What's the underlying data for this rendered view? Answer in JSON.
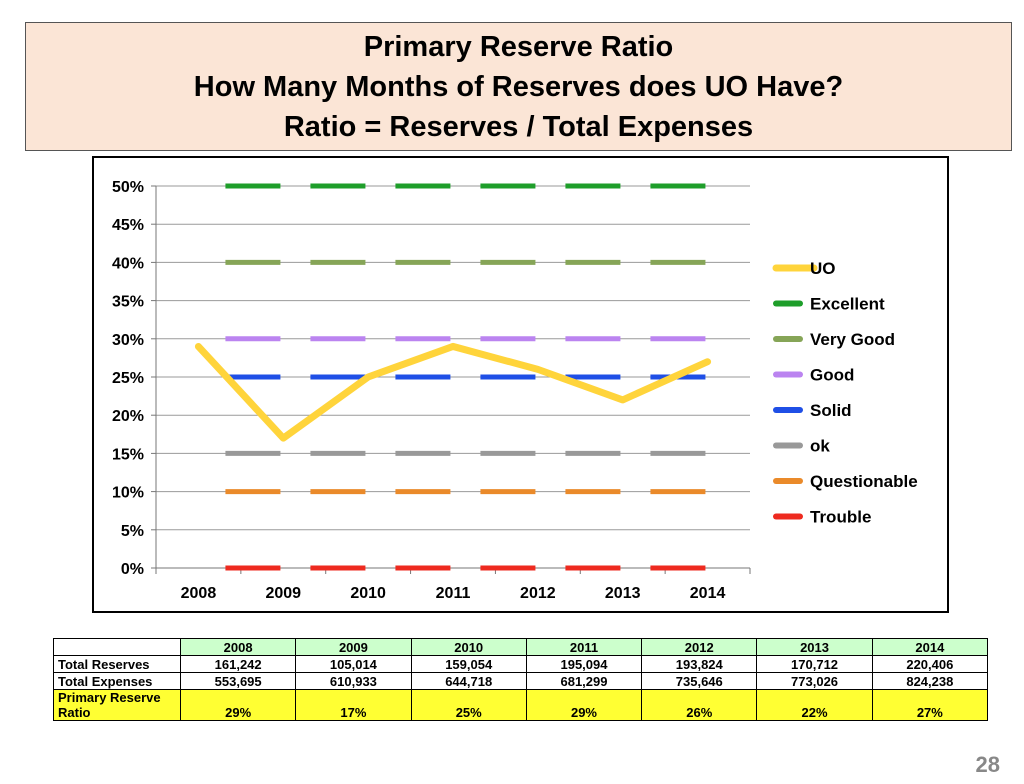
{
  "title": {
    "line1": "Primary Reserve Ratio",
    "line2": "How Many Months of Reserves does UO Have?",
    "line3": "Ratio = Reserves / Total Expenses"
  },
  "chart_data": {
    "type": "line",
    "categories": [
      "2008",
      "2009",
      "2010",
      "2011",
      "2012",
      "2013",
      "2014"
    ],
    "ylim": [
      0,
      50
    ],
    "yticks": [
      "0%",
      "5%",
      "10%",
      "15%",
      "20%",
      "25%",
      "30%",
      "35%",
      "40%",
      "45%",
      "50%"
    ],
    "grid": true,
    "legend_position": "right",
    "series": [
      {
        "name": "UO",
        "color": "#ffd43b",
        "style": "solid",
        "values": [
          29,
          17,
          25,
          29,
          26,
          22,
          27
        ]
      },
      {
        "name": "Excellent",
        "color": "#1e9e2a",
        "style": "dashed",
        "values": [
          50,
          50,
          50,
          50,
          50,
          50,
          50
        ]
      },
      {
        "name": "Very Good",
        "color": "#86a557",
        "style": "dashed",
        "values": [
          40,
          40,
          40,
          40,
          40,
          40,
          40
        ]
      },
      {
        "name": "Good",
        "color": "#bb84f0",
        "style": "dashed",
        "values": [
          30,
          30,
          30,
          30,
          30,
          30,
          30
        ]
      },
      {
        "name": "Solid",
        "color": "#1f4fe6",
        "style": "dashed",
        "values": [
          25,
          25,
          25,
          25,
          25,
          25,
          25
        ]
      },
      {
        "name": "ok",
        "color": "#999999",
        "style": "dashed",
        "values": [
          15,
          15,
          15,
          15,
          15,
          15,
          15
        ]
      },
      {
        "name": "Questionable",
        "color": "#ea8a2a",
        "style": "dashed",
        "values": [
          10,
          10,
          10,
          10,
          10,
          10,
          10
        ]
      },
      {
        "name": "Trouble",
        "color": "#ee2a1f",
        "style": "dashed",
        "values": [
          0,
          0,
          0,
          0,
          0,
          0,
          0
        ]
      }
    ]
  },
  "table": {
    "years": [
      "2008",
      "2009",
      "2010",
      "2011",
      "2012",
      "2013",
      "2014"
    ],
    "rows": [
      {
        "label": "Total Reserves",
        "values": [
          "161,242",
          "105,014",
          "159,054",
          "195,094",
          "193,824",
          "170,712",
          "220,406"
        ]
      },
      {
        "label": "Total Expenses",
        "values": [
          "553,695",
          "610,933",
          "644,718",
          "681,299",
          "735,646",
          "773,026",
          "824,238"
        ]
      }
    ],
    "ratio_row": {
      "label_line1": "Primary Reserve",
      "label_line2": "Ratio",
      "values": [
        "29%",
        "17%",
        "25%",
        "29%",
        "26%",
        "22%",
        "27%"
      ]
    }
  },
  "page_number": "28"
}
